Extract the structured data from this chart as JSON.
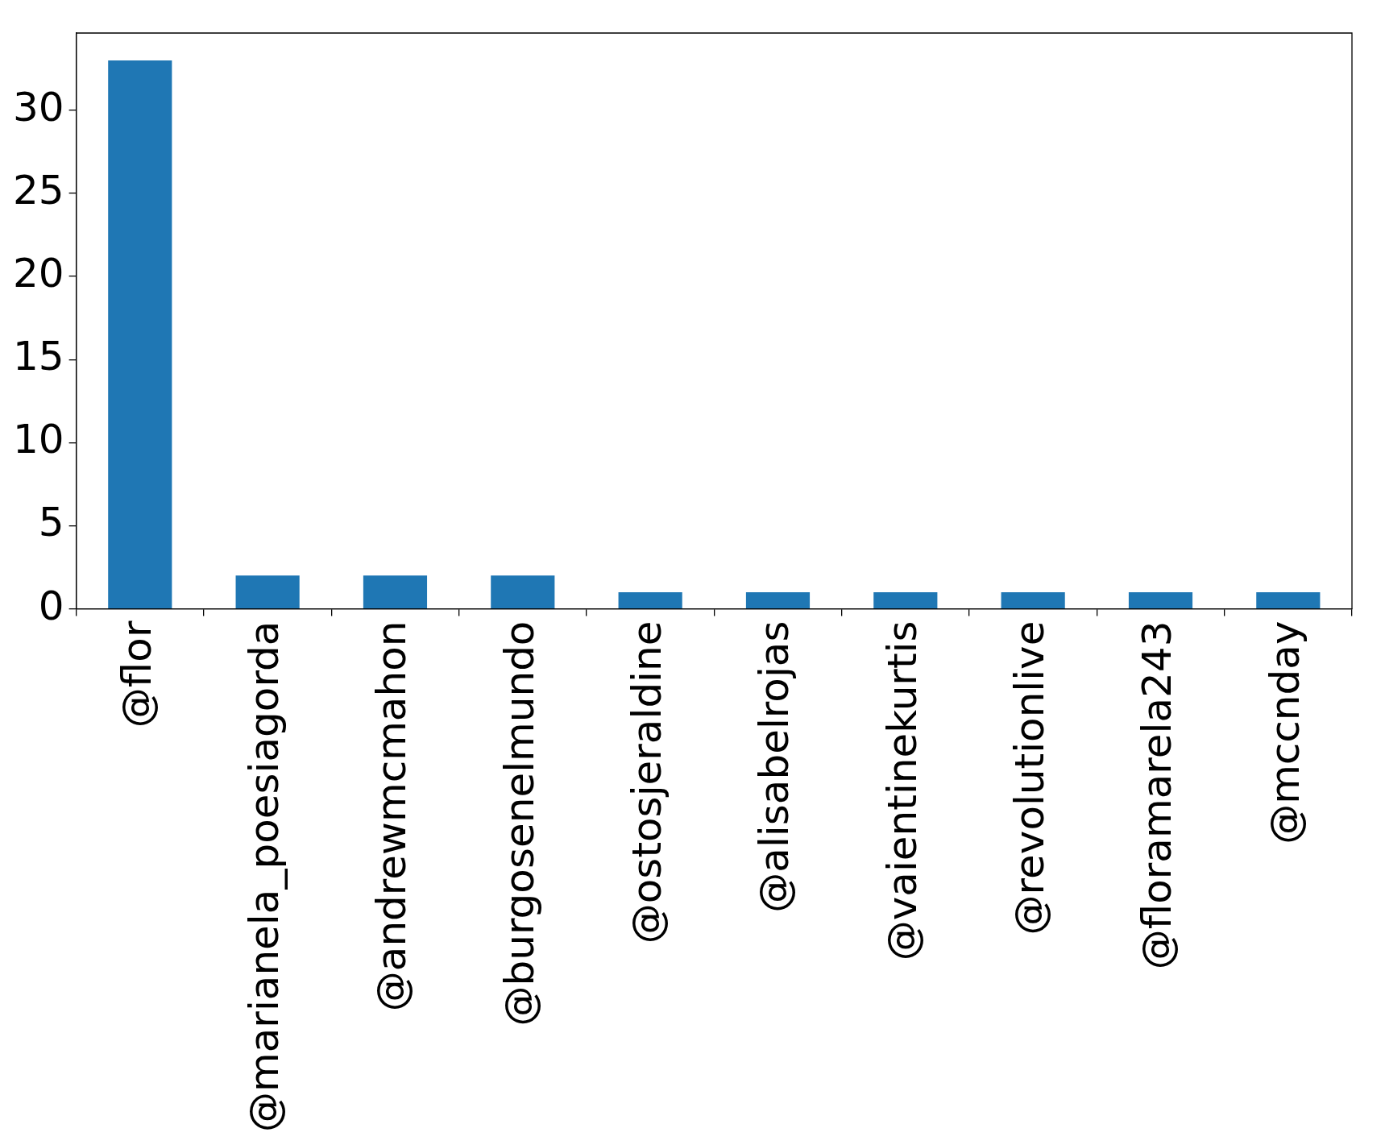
{
  "chart_data": {
    "type": "bar",
    "categories": [
      "@flor",
      "@marianela_poesiagorda",
      "@andrewmcmahon",
      "@burgosenelmundo",
      "@ostosjeraldine",
      "@alisabelrojas",
      "@vaientinekurtis",
      "@revolutionlive",
      "@floramarela243",
      "@mccnday"
    ],
    "values": [
      33,
      2,
      2,
      2,
      1,
      1,
      1,
      1,
      1,
      1
    ],
    "color": "#1f77b4",
    "ylim": [
      0,
      34.65
    ],
    "yticks": [
      0,
      5,
      10,
      15,
      20,
      25,
      30
    ],
    "grid": false,
    "legend": false
  }
}
